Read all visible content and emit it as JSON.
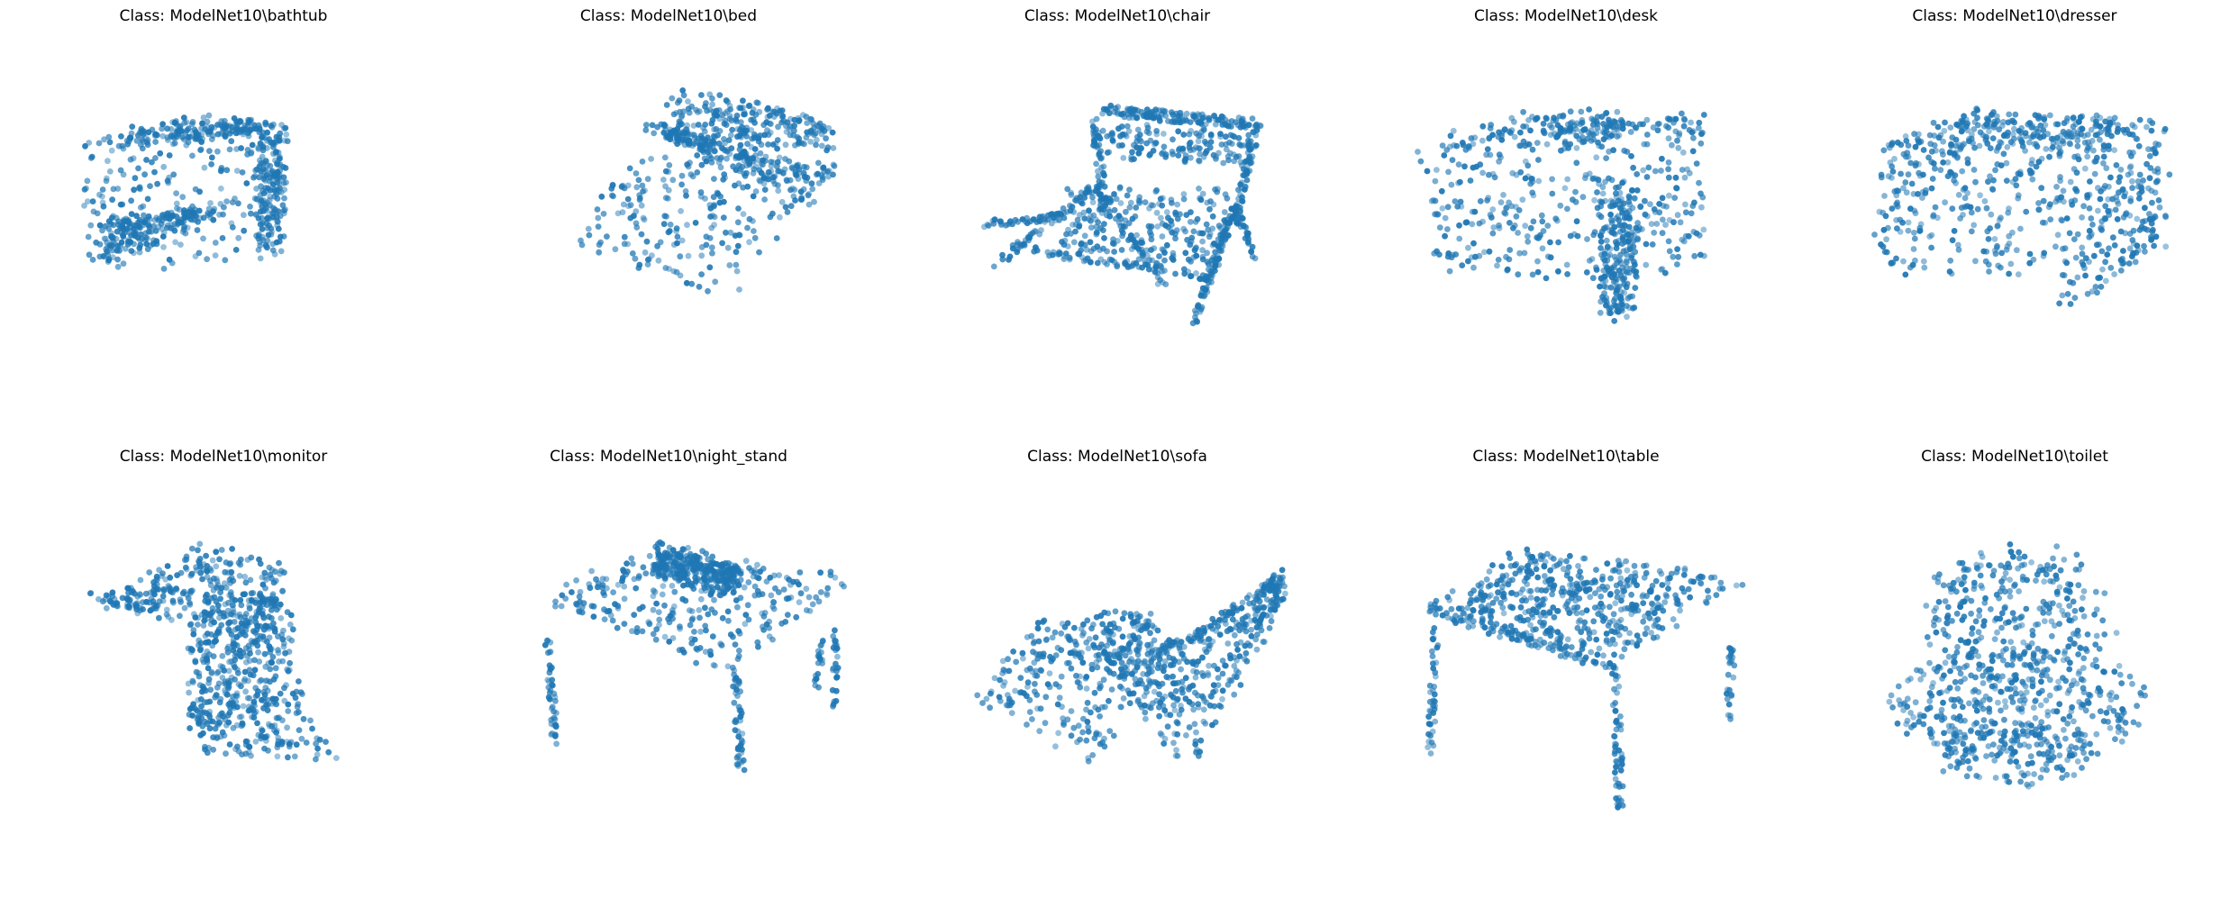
{
  "style": {
    "point_color": "#1f77b4",
    "background": "#ffffff"
  },
  "chart_data": [
    {
      "type": "scatter",
      "subtype": "3d-point-cloud",
      "title": "Class: ModelNet10\\bathtub",
      "shape": "bathtub",
      "axes": "hidden"
    },
    {
      "type": "scatter",
      "subtype": "3d-point-cloud",
      "title": "Class: ModelNet10\\bed",
      "shape": "bed",
      "axes": "hidden"
    },
    {
      "type": "scatter",
      "subtype": "3d-point-cloud",
      "title": "Class: ModelNet10\\chair",
      "shape": "chair",
      "axes": "hidden"
    },
    {
      "type": "scatter",
      "subtype": "3d-point-cloud",
      "title": "Class: ModelNet10\\desk",
      "shape": "desk",
      "axes": "hidden"
    },
    {
      "type": "scatter",
      "subtype": "3d-point-cloud",
      "title": "Class: ModelNet10\\dresser",
      "shape": "dresser",
      "axes": "hidden"
    },
    {
      "type": "scatter",
      "subtype": "3d-point-cloud",
      "title": "Class: ModelNet10\\monitor",
      "shape": "monitor",
      "axes": "hidden"
    },
    {
      "type": "scatter",
      "subtype": "3d-point-cloud",
      "title": "Class: ModelNet10\\night_stand",
      "shape": "night_stand",
      "axes": "hidden"
    },
    {
      "type": "scatter",
      "subtype": "3d-point-cloud",
      "title": "Class: ModelNet10\\sofa",
      "shape": "sofa",
      "axes": "hidden"
    },
    {
      "type": "scatter",
      "subtype": "3d-point-cloud",
      "title": "Class: ModelNet10\\table",
      "shape": "table",
      "axes": "hidden"
    },
    {
      "type": "scatter",
      "subtype": "3d-point-cloud",
      "title": "Class: ModelNet10\\toilet",
      "shape": "toilet",
      "axes": "hidden"
    }
  ]
}
